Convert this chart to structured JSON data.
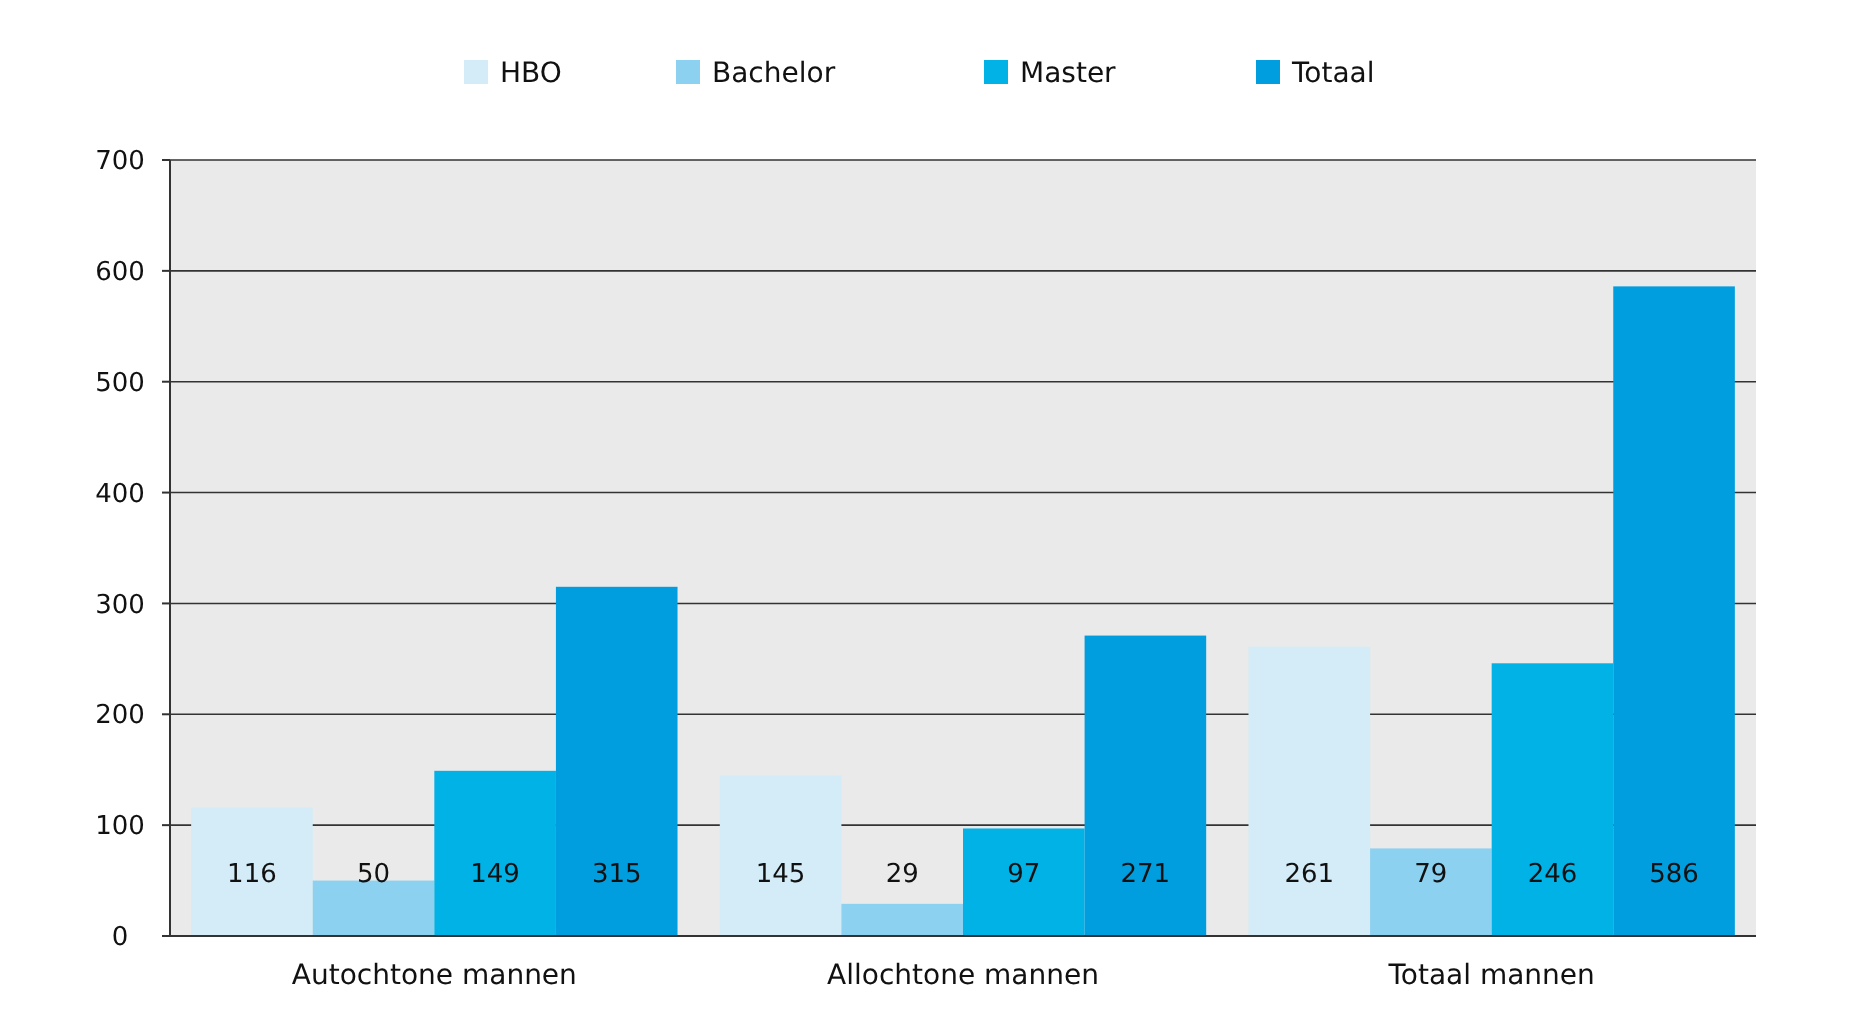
{
  "chart_data": {
    "type": "bar",
    "categories": [
      "Autochtone mannen",
      "Allochtone mannen",
      "Totaal mannen"
    ],
    "series": [
      {
        "name": "HBO",
        "color": "#d4ecf8",
        "values": [
          116,
          145,
          261
        ]
      },
      {
        "name": "Bachelor",
        "color": "#8dd1f0",
        "values": [
          50,
          29,
          79
        ]
      },
      {
        "name": "Master",
        "color": "#00b2e6",
        "values": [
          149,
          97,
          246
        ]
      },
      {
        "name": "Totaal",
        "color": "#009edf",
        "values": [
          315,
          271,
          586
        ]
      }
    ],
    "ylim": [
      0,
      700
    ],
    "yticks": [
      0,
      100,
      200,
      300,
      400,
      500,
      600,
      700
    ],
    "grid": "y",
    "legend": "top",
    "data_labels": true
  }
}
